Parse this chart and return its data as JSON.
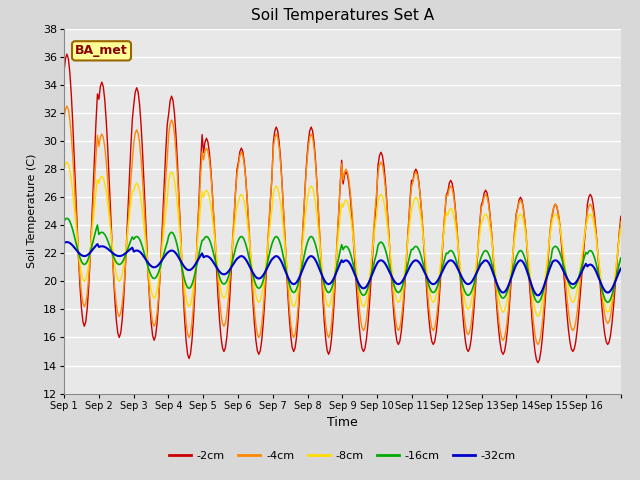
{
  "title": "Soil Temperatures Set A",
  "xlabel": "Time",
  "ylabel": "Soil Temperature (C)",
  "ylim": [
    12,
    38
  ],
  "yticks": [
    12,
    14,
    16,
    18,
    20,
    22,
    24,
    26,
    28,
    30,
    32,
    34,
    36,
    38
  ],
  "annotation": "BA_met",
  "legend_labels": [
    "-2cm",
    "-4cm",
    "-8cm",
    "-16cm",
    "-32cm"
  ],
  "line_colors": [
    "#cc0000",
    "#ff8800",
    "#ffdd00",
    "#00aa00",
    "#0000cc"
  ],
  "line_widths": [
    1.0,
    1.0,
    1.0,
    1.2,
    1.5
  ],
  "fig_facecolor": "#d8d8d8",
  "axes_facecolor": "#e8e8e8",
  "grid_color": "#ffffff",
  "xtick_labels": [
    "Sep 1",
    "Sep 2",
    "Sep 3",
    "Sep 4",
    "Sep 5",
    "Sep 6",
    "Sep 7",
    "Sep 8",
    "Sep 9",
    "Sep 10",
    "Sep 11",
    "Sep 12",
    "Sep 13",
    "Sep 14",
    "Sep 15",
    "Sep 16"
  ],
  "n_days": 16,
  "samples_per_day": 24,
  "depth_2cm_peaks": [
    36.2,
    34.2,
    33.8,
    33.2,
    30.2,
    29.5,
    31.0,
    31.0,
    27.8,
    29.2,
    28.0,
    27.2,
    26.5,
    26.0,
    25.5,
    26.2
  ],
  "depth_2cm_troughs": [
    16.8,
    16.0,
    15.8,
    14.5,
    15.0,
    14.8,
    15.0,
    14.8,
    15.0,
    15.5,
    15.5,
    15.0,
    14.8,
    14.2,
    15.0,
    15.5
  ],
  "depth_4cm_peaks": [
    32.5,
    30.5,
    30.8,
    31.5,
    29.5,
    29.2,
    30.5,
    30.5,
    28.0,
    28.5,
    27.8,
    26.8,
    26.2,
    25.8,
    25.5,
    25.5
  ],
  "depth_4cm_troughs": [
    18.2,
    17.5,
    16.8,
    16.0,
    16.8,
    16.0,
    16.0,
    16.0,
    16.5,
    16.5,
    16.5,
    16.2,
    15.8,
    15.5,
    16.5,
    17.0
  ],
  "depth_8cm_peaks": [
    28.5,
    27.5,
    27.0,
    27.8,
    26.5,
    26.2,
    26.8,
    26.8,
    25.8,
    26.2,
    26.0,
    25.2,
    24.8,
    24.8,
    24.8,
    24.8
  ],
  "depth_8cm_troughs": [
    20.0,
    20.0,
    18.8,
    18.2,
    18.8,
    18.5,
    18.2,
    18.2,
    18.2,
    18.5,
    18.5,
    18.0,
    17.8,
    17.5,
    18.5,
    17.8
  ],
  "depth_16cm_peaks": [
    24.5,
    23.5,
    23.2,
    23.5,
    23.2,
    23.2,
    23.2,
    23.2,
    22.5,
    22.8,
    22.5,
    22.2,
    22.2,
    22.2,
    22.5,
    22.2
  ],
  "depth_16cm_troughs": [
    21.2,
    21.2,
    20.2,
    19.5,
    19.8,
    19.5,
    19.2,
    19.2,
    19.0,
    19.2,
    19.2,
    19.0,
    18.8,
    18.5,
    19.5,
    18.5
  ],
  "depth_32cm_peaks": [
    22.8,
    22.5,
    22.2,
    22.2,
    21.8,
    21.8,
    21.8,
    21.8,
    21.5,
    21.5,
    21.5,
    21.5,
    21.5,
    21.5,
    21.5,
    21.2
  ],
  "depth_32cm_troughs": [
    21.8,
    21.8,
    21.0,
    20.8,
    20.5,
    20.2,
    19.8,
    19.8,
    19.5,
    19.8,
    19.8,
    19.8,
    19.2,
    19.0,
    19.8,
    19.2
  ]
}
